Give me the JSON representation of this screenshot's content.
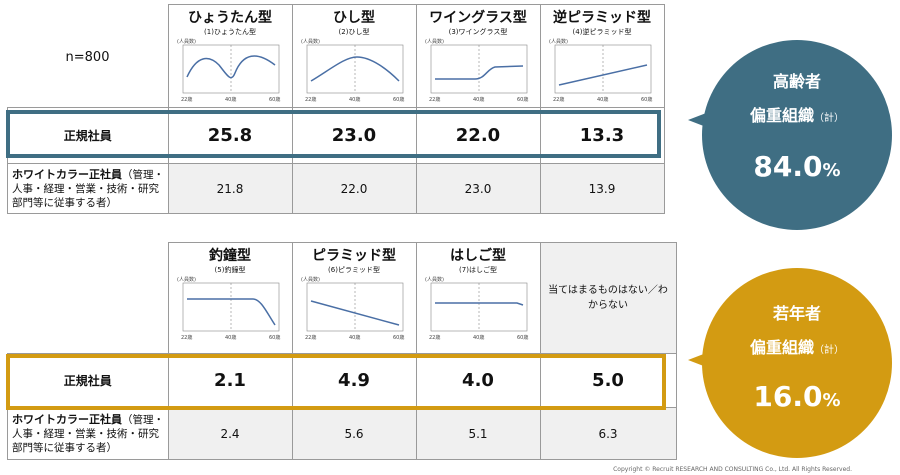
{
  "sample": "n=800",
  "table1": {
    "headers": [
      {
        "title": "ひょうたん型",
        "sub": "(1)ひょうたん型"
      },
      {
        "title": "ひし型",
        "sub": "(2)ひし型"
      },
      {
        "title": "ワイングラス型",
        "sub": "(3)ワイングラス型"
      },
      {
        "title": "逆ピラミッド型",
        "sub": "(4)逆ピラミッド型"
      }
    ],
    "row1_label": "正規社員",
    "row1": [
      "25.8",
      "23.0",
      "22.0",
      "13.3"
    ],
    "row2_label_bold": "ホワイトカラー正社員",
    "row2_label_rest": "（管理・人事・経理・営業・技術・研究部門等に従事する者）",
    "row2": [
      "21.8",
      "22.0",
      "23.0",
      "13.9"
    ]
  },
  "table2": {
    "headers": [
      {
        "title": "釣鐘型",
        "sub": "(5)釣鐘型"
      },
      {
        "title": "ピラミッド型",
        "sub": "(6)ピラミッド型"
      },
      {
        "title": "はしご型",
        "sub": "(7)はしご型"
      }
    ],
    "none_label": "当てはまるものはない／わからない",
    "row1_label": "正規社員",
    "row1": [
      "2.1",
      "4.9",
      "4.0",
      "5.0"
    ],
    "row2_label_bold": "ホワイトカラー正社員",
    "row2_label_rest": "（管理・人事・経理・営業・技術・研究部門等に従事する者）",
    "row2": [
      "2.4",
      "5.6",
      "5.1",
      "6.3"
    ]
  },
  "axis": {
    "y": "(人員数)",
    "x1": "22歳",
    "x2": "40歳",
    "x3": "60歳"
  },
  "bubble_old": {
    "line1": "高齢者",
    "line2": "偏重組織",
    "line2_note": "（計）",
    "value": "84.0",
    "unit": "%",
    "color": "#3f6e83"
  },
  "bubble_young": {
    "line1": "若年者",
    "line2": "偏重組織",
    "line2_note": "（計）",
    "value": "16.0",
    "unit": "%",
    "color": "#d39b12"
  },
  "copyright": "Copyright © Recruit RESEARCH AND CONSULTING Co., Ltd. All Rights Reserved."
}
